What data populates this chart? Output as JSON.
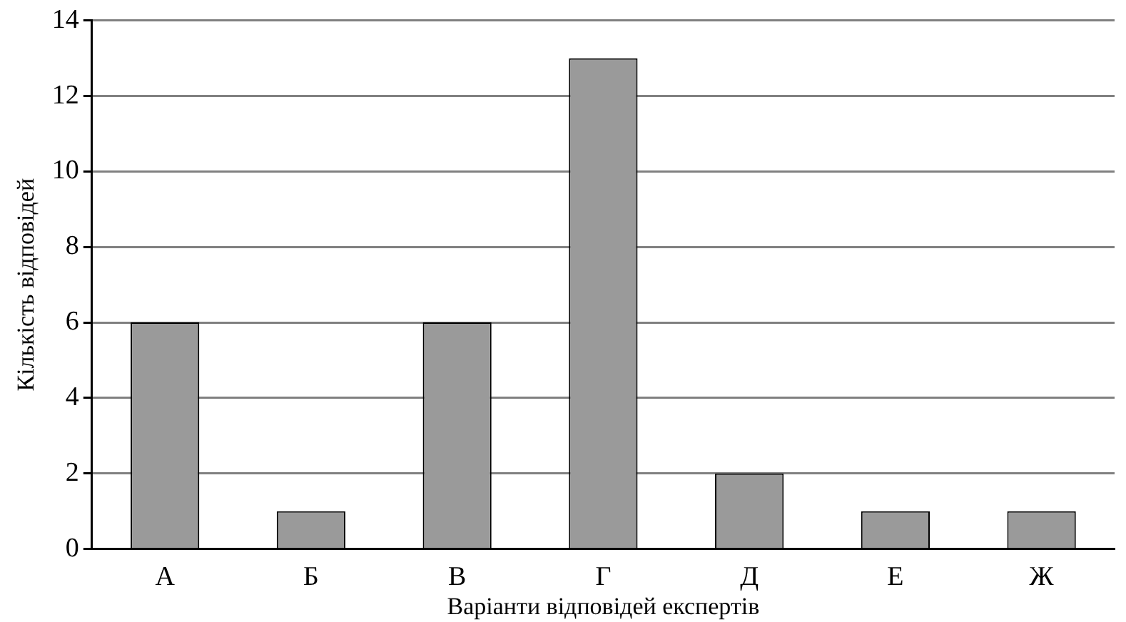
{
  "chart_data": {
    "type": "bar",
    "xlabel": "Варіанти відповідей експертів",
    "ylabel": "Кількість відповідей",
    "categories": [
      "А",
      "Б",
      "В",
      "Г",
      "Д",
      "Е",
      "Ж"
    ],
    "values": [
      6,
      1,
      6,
      13,
      2,
      1,
      1
    ],
    "color": "#9a9a9a",
    "ylim": [
      0,
      14
    ],
    "yticks": [
      0,
      2,
      4,
      6,
      8,
      10,
      12,
      14
    ],
    "grid": "y"
  }
}
